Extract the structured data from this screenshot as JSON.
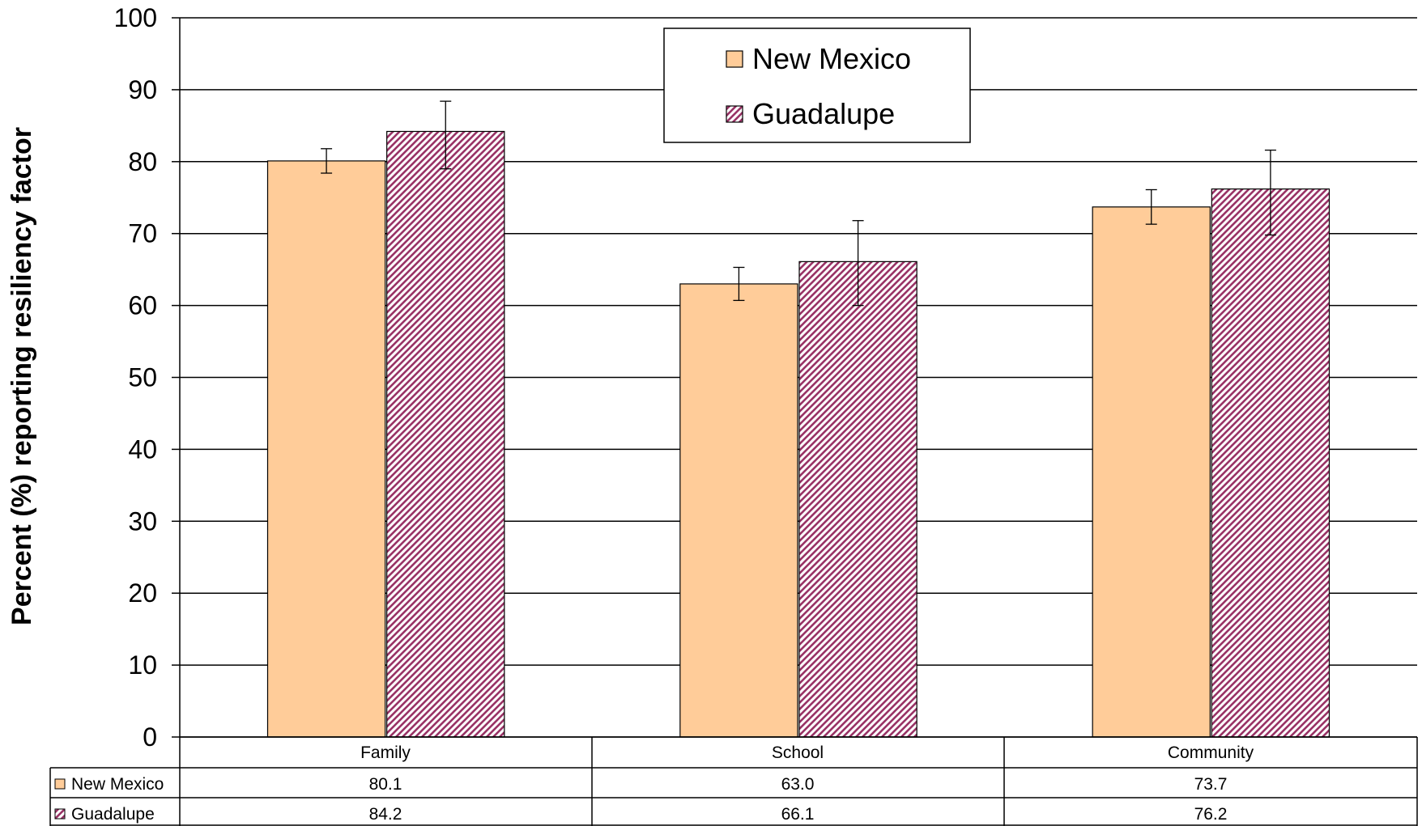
{
  "chart_data": {
    "type": "bar",
    "categories": [
      "Family",
      "School",
      "Community"
    ],
    "series": [
      {
        "name": "New Mexico",
        "values": [
          80.1,
          63.0,
          73.7
        ],
        "labels": [
          "80.1",
          "63.0",
          "73.7"
        ],
        "error_low": [
          78.4,
          60.7,
          71.3
        ],
        "error_high": [
          81.8,
          65.3,
          76.1
        ],
        "color": "#FFCC99"
      },
      {
        "name": "Guadalupe",
        "values": [
          84.2,
          66.1,
          76.2
        ],
        "labels": [
          "84.2",
          "66.1",
          "76.2"
        ],
        "error_low": [
          79.0,
          60.0,
          69.8
        ],
        "error_high": [
          88.4,
          71.8,
          81.6
        ],
        "color": "#993366"
      }
    ],
    "ylabel": "Percent (%)  reporting resiliency factor",
    "ylim": [
      0,
      100
    ],
    "yticks": [
      "0",
      "10",
      "20",
      "30",
      "40",
      "50",
      "60",
      "70",
      "80",
      "90",
      "100"
    ],
    "grid": true,
    "legend_position": "top-center",
    "data_table": true
  }
}
